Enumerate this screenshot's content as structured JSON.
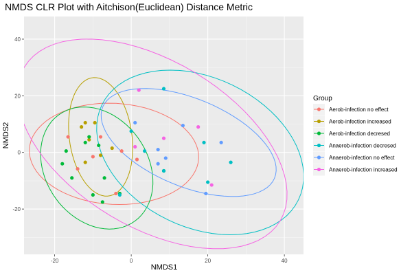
{
  "chart_data": {
    "type": "scatter",
    "title": "NMDS CLR Plot with Aitchison(Euclidean) Distance Metric",
    "xlabel": "NMDS1",
    "ylabel": "NMDS2",
    "xlim": [
      -28,
      45
    ],
    "ylim": [
      -36,
      48
    ],
    "xticks": [
      -20,
      0,
      20,
      40
    ],
    "yticks": [
      -20,
      0,
      20,
      40
    ],
    "grid": true,
    "legend": {
      "title": "Group",
      "position": "right"
    },
    "series": [
      {
        "name": "Aerob-infection no effect",
        "color": "#F8766D",
        "points": [
          [
            -16.5,
            5.5
          ],
          [
            -14,
            -5.8
          ],
          [
            -10,
            -1.5
          ],
          [
            -8,
            5.5
          ],
          [
            -2.5,
            0.5
          ],
          [
            1.5,
            -2.5
          ],
          [
            -4,
            -14.5
          ]
        ],
        "ellipse": {
          "center": [
            -4.5,
            -0.5
          ],
          "rx": 22.2,
          "ry": 17.8,
          "angle": -8
        }
      },
      {
        "name": "Aerob-infection increased",
        "color": "#B79F00",
        "points": [
          [
            -12,
            10.5
          ],
          [
            -13,
            9
          ],
          [
            -11,
            4.5
          ],
          [
            -9.5,
            10.5
          ],
          [
            -5,
            1.5
          ],
          [
            -12,
            -3.5
          ],
          [
            -8,
            -1
          ]
        ],
        "ellipse": {
          "center": [
            -8,
            5.5
          ],
          "rx": 8.2,
          "ry": 21,
          "angle": 5
        }
      },
      {
        "name": "Aerob-infection decresed",
        "color": "#00BA38",
        "points": [
          [
            -17,
            0.5
          ],
          [
            -18,
            -4
          ],
          [
            -15.5,
            -9
          ],
          [
            -12,
            3.5
          ],
          [
            -11,
            5.5
          ],
          [
            -8.5,
            2.5
          ],
          [
            -7,
            -9
          ],
          [
            -10,
            -15
          ],
          [
            -7.5,
            -17.5
          ],
          [
            -3,
            -14.5
          ],
          [
            8.5,
            -6.5
          ]
        ],
        "ellipse": {
          "center": [
            -9,
            -5.5
          ],
          "rx": 14,
          "ry": 22,
          "angle": 15
        }
      },
      {
        "name": "Anaerob-infection decresed",
        "color": "#00BFC4",
        "points": [
          [
            8.5,
            22.5
          ],
          [
            0,
            7.5
          ],
          [
            3.5,
            0.5
          ],
          [
            8.5,
            -6.5
          ],
          [
            19,
            3.5
          ],
          [
            26,
            -3.5
          ],
          [
            20,
            -10.5
          ],
          [
            -3,
            -15
          ]
        ],
        "ellipse": {
          "center": [
            18,
            0
          ],
          "rx": 23.5,
          "ry": 32,
          "angle": 38
        }
      },
      {
        "name": "Anaerob-infection no effect",
        "color": "#619CFF",
        "points": [
          [
            1,
            10.5
          ],
          [
            7,
            1
          ],
          [
            9,
            -2
          ],
          [
            7,
            -4
          ],
          [
            13.5,
            9.5
          ],
          [
            23.5,
            3.5
          ],
          [
            19.5,
            -14.5
          ]
        ],
        "ellipse": {
          "center": [
            15,
            3.5
          ],
          "rx": 14.5,
          "ry": 26,
          "angle": 55
        }
      },
      {
        "name": "Anaerob-infection increased",
        "color": "#F564E3",
        "points": [
          [
            2,
            22
          ],
          [
            1,
            2
          ],
          [
            8.5,
            5
          ],
          [
            17.5,
            9
          ],
          [
            21,
            -11.5
          ]
        ],
        "ellipse": {
          "center": [
            5.5,
            3
          ],
          "rx": 44,
          "ry": 26,
          "angle": -48
        }
      }
    ]
  }
}
